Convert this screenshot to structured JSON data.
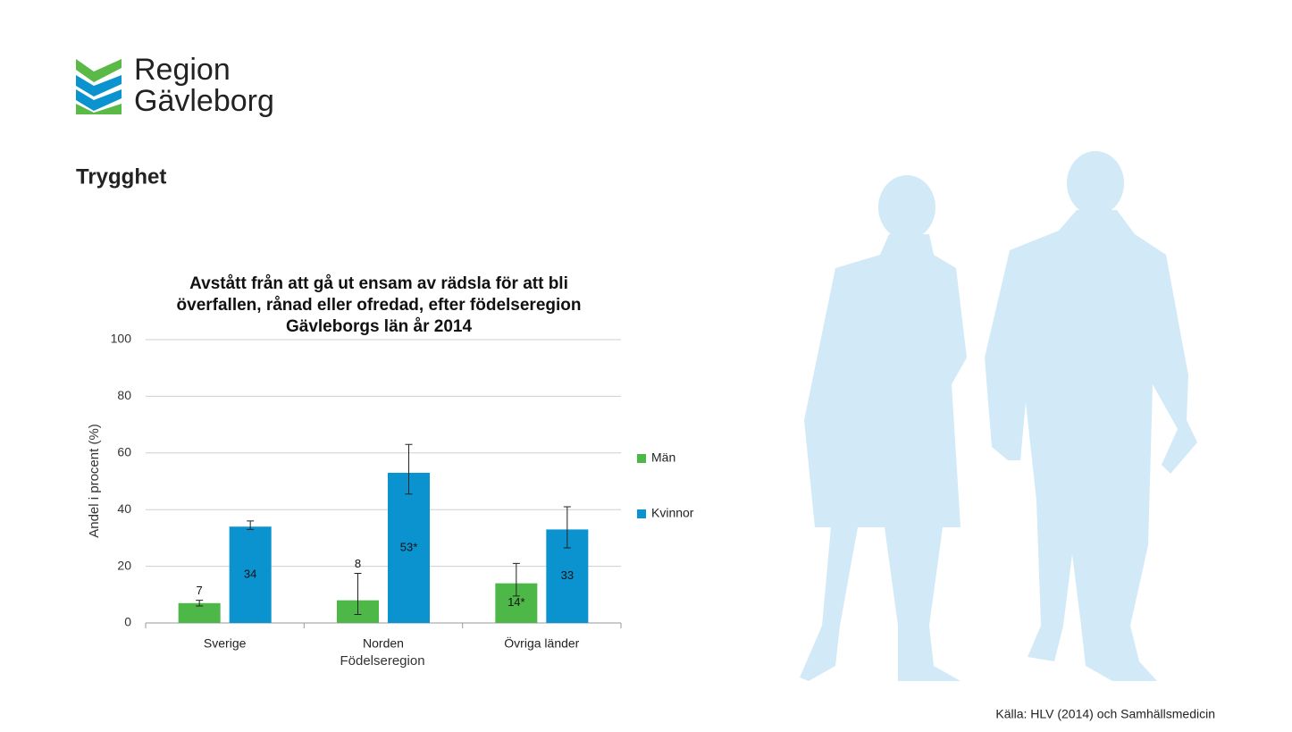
{
  "logo": {
    "line1": "Region",
    "line2": "Gävleborg"
  },
  "heading": "Trygghet",
  "source": "Källa: HLV (2014) och Samhällsmedicin",
  "chart_data": {
    "type": "bar",
    "title": [
      "Avstått från att gå ut ensam av rädsla för att bli",
      "överfallen, rånad eller ofredad, efter födelseregion",
      "Gävleborgs län år 2014"
    ],
    "x_label": "Födelseregion",
    "y_label": "Andel i procent (%)",
    "categories": [
      "Sverige",
      "Norden",
      "Övriga länder"
    ],
    "series": [
      {
        "name": "Män",
        "color": "#4db848",
        "values": [
          7,
          8,
          14
        ],
        "value_labels": [
          "7",
          "8",
          "14*"
        ],
        "error_minus": [
          1,
          5,
          4.5
        ],
        "error_plus": [
          1,
          9.5,
          7
        ]
      },
      {
        "name": "Kvinnor",
        "color": "#0a93cf",
        "values": [
          34,
          53,
          33
        ],
        "value_labels": [
          "34",
          "53*",
          "33"
        ],
        "error_minus": [
          1,
          7.5,
          6.5
        ],
        "error_plus": [
          2,
          10,
          8
        ]
      }
    ],
    "ylim": [
      0,
      100
    ],
    "yticks": [
      0,
      20,
      40,
      60,
      80,
      100
    ],
    "grid": true,
    "legend": "right"
  }
}
